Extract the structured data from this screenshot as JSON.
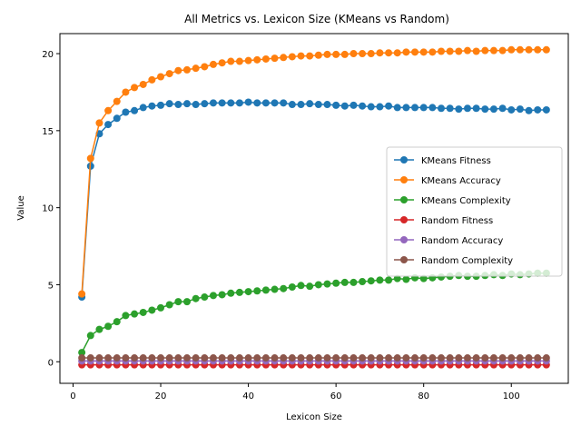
{
  "chart_data": {
    "type": "line",
    "title": "All Metrics vs. Lexicon Size (KMeans vs Random)",
    "xlabel": "Lexicon Size",
    "ylabel": "Value",
    "xlim": [
      -3,
      113
    ],
    "ylim": [
      -1.4,
      21.3
    ],
    "xticks": [
      0,
      20,
      40,
      60,
      80,
      100
    ],
    "yticks": [
      0,
      5,
      10,
      15,
      20
    ],
    "grid": false,
    "legend_position": "center-right",
    "x": [
      2,
      4,
      6,
      8,
      10,
      12,
      14,
      16,
      18,
      20,
      22,
      24,
      26,
      28,
      30,
      32,
      34,
      36,
      38,
      40,
      42,
      44,
      46,
      48,
      50,
      52,
      54,
      56,
      58,
      60,
      62,
      64,
      66,
      68,
      70,
      72,
      74,
      76,
      78,
      80,
      82,
      84,
      86,
      88,
      90,
      92,
      94,
      96,
      98,
      100,
      102,
      104,
      106,
      108
    ],
    "series": [
      {
        "name": "KMeans Fitness",
        "color": "#1f77b4",
        "values": [
          4.2,
          12.7,
          14.8,
          15.4,
          15.8,
          16.2,
          16.3,
          16.5,
          16.6,
          16.65,
          16.75,
          16.7,
          16.75,
          16.7,
          16.75,
          16.8,
          16.8,
          16.8,
          16.8,
          16.85,
          16.8,
          16.8,
          16.8,
          16.8,
          16.7,
          16.7,
          16.75,
          16.7,
          16.7,
          16.65,
          16.6,
          16.65,
          16.6,
          16.55,
          16.55,
          16.6,
          16.5,
          16.5,
          16.5,
          16.5,
          16.5,
          16.45,
          16.45,
          16.4,
          16.45,
          16.45,
          16.4,
          16.4,
          16.45,
          16.35,
          16.4,
          16.3,
          16.35,
          16.35
        ]
      },
      {
        "name": "KMeans Accuracy",
        "color": "#ff7f0e",
        "values": [
          4.4,
          13.2,
          15.5,
          16.3,
          16.9,
          17.5,
          17.8,
          18.0,
          18.3,
          18.5,
          18.7,
          18.9,
          18.95,
          19.05,
          19.15,
          19.3,
          19.4,
          19.5,
          19.5,
          19.55,
          19.6,
          19.65,
          19.7,
          19.75,
          19.8,
          19.85,
          19.85,
          19.9,
          19.95,
          19.95,
          19.95,
          20.0,
          20.0,
          20.0,
          20.05,
          20.05,
          20.05,
          20.1,
          20.1,
          20.1,
          20.1,
          20.15,
          20.15,
          20.15,
          20.2,
          20.15,
          20.2,
          20.2,
          20.2,
          20.25,
          20.25,
          20.25,
          20.25,
          20.25
        ]
      },
      {
        "name": "KMeans Complexity",
        "color": "#2ca02c",
        "values": [
          0.6,
          1.7,
          2.1,
          2.3,
          2.6,
          3.0,
          3.1,
          3.2,
          3.35,
          3.5,
          3.7,
          3.9,
          3.9,
          4.1,
          4.2,
          4.3,
          4.35,
          4.45,
          4.5,
          4.55,
          4.6,
          4.65,
          4.7,
          4.75,
          4.85,
          4.95,
          4.9,
          5.0,
          5.05,
          5.1,
          5.15,
          5.15,
          5.2,
          5.25,
          5.3,
          5.3,
          5.4,
          5.35,
          5.45,
          5.4,
          5.45,
          5.5,
          5.55,
          5.6,
          5.55,
          5.55,
          5.6,
          5.65,
          5.6,
          5.7,
          5.65,
          5.7,
          5.75,
          5.75
        ]
      },
      {
        "name": "Random Fitness",
        "color": "#d62728",
        "values": [
          -0.2,
          -0.2,
          -0.2,
          -0.2,
          -0.2,
          -0.2,
          -0.2,
          -0.2,
          -0.2,
          -0.2,
          -0.2,
          -0.2,
          -0.2,
          -0.2,
          -0.2,
          -0.2,
          -0.2,
          -0.2,
          -0.2,
          -0.2,
          -0.2,
          -0.2,
          -0.2,
          -0.2,
          -0.2,
          -0.2,
          -0.2,
          -0.2,
          -0.2,
          -0.2,
          -0.2,
          -0.2,
          -0.2,
          -0.2,
          -0.2,
          -0.2,
          -0.2,
          -0.2,
          -0.2,
          -0.2,
          -0.2,
          -0.2,
          -0.2,
          -0.2,
          -0.2,
          -0.2,
          -0.2,
          -0.2,
          -0.2,
          -0.2,
          -0.2,
          -0.2,
          -0.2,
          -0.2
        ]
      },
      {
        "name": "Random Accuracy",
        "color": "#9467bd",
        "values": [
          0.05,
          0.05,
          0.05,
          0.05,
          0.05,
          0.05,
          0.05,
          0.05,
          0.05,
          0.05,
          0.05,
          0.05,
          0.05,
          0.05,
          0.05,
          0.05,
          0.05,
          0.05,
          0.05,
          0.05,
          0.05,
          0.05,
          0.05,
          0.05,
          0.05,
          0.05,
          0.05,
          0.05,
          0.05,
          0.05,
          0.05,
          0.05,
          0.05,
          0.05,
          0.05,
          0.05,
          0.05,
          0.05,
          0.05,
          0.05,
          0.05,
          0.05,
          0.05,
          0.05,
          0.05,
          0.05,
          0.05,
          0.05,
          0.05,
          0.05,
          0.05,
          0.05,
          0.05,
          0.05
        ]
      },
      {
        "name": "Random Complexity",
        "color": "#8c564b",
        "values": [
          0.25,
          0.25,
          0.25,
          0.25,
          0.25,
          0.25,
          0.25,
          0.25,
          0.25,
          0.25,
          0.25,
          0.25,
          0.25,
          0.25,
          0.25,
          0.25,
          0.25,
          0.25,
          0.25,
          0.25,
          0.25,
          0.25,
          0.25,
          0.25,
          0.25,
          0.25,
          0.25,
          0.25,
          0.25,
          0.25,
          0.25,
          0.25,
          0.25,
          0.25,
          0.25,
          0.25,
          0.25,
          0.25,
          0.25,
          0.25,
          0.25,
          0.25,
          0.25,
          0.25,
          0.25,
          0.25,
          0.25,
          0.25,
          0.25,
          0.25,
          0.25,
          0.25,
          0.25,
          0.25
        ]
      }
    ]
  }
}
